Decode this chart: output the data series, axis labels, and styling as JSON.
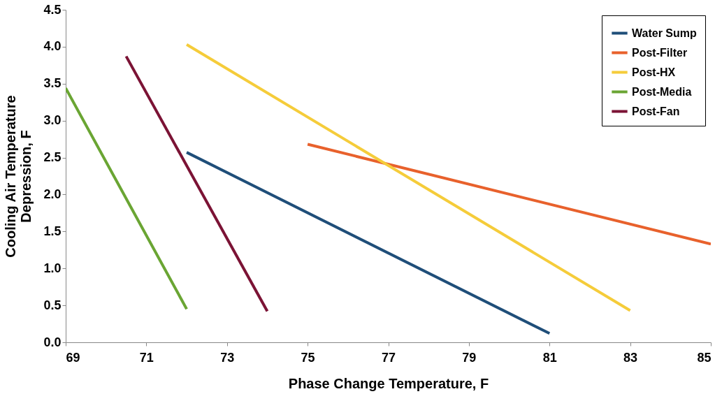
{
  "chart_data": {
    "type": "line",
    "xlabel": "Phase Change Temperature, F",
    "ylabel": "Cooling Air Temperature\nDepression, F",
    "xlim": [
      69,
      85
    ],
    "xticks": [
      69,
      71,
      73,
      75,
      77,
      79,
      81,
      83,
      85
    ],
    "ylim": [
      0,
      4.5
    ],
    "yticks": [
      {
        "value": 0,
        "label": "0.0"
      },
      {
        "value": 0.5,
        "label": "0.5"
      },
      {
        "value": 1,
        "label": "1.0"
      },
      {
        "value": 1.5,
        "label": "1.5"
      },
      {
        "value": 2,
        "label": "2.0"
      },
      {
        "value": 2.5,
        "label": "2.5"
      },
      {
        "value": 3,
        "label": "3.0"
      },
      {
        "value": 3.5,
        "label": "3.5"
      },
      {
        "value": 4,
        "label": "4.0"
      },
      {
        "value": 4.5,
        "label": "4.5"
      }
    ],
    "grid": false,
    "legend": "top right",
    "marker": "none",
    "line_style": "solid",
    "series": [
      {
        "name": "Water Sump",
        "color": "#1f4e79",
        "x": [
          72,
          81
        ],
        "values": [
          2.57,
          0.12
        ]
      },
      {
        "name": "Post-Filter",
        "color": "#e8612c",
        "x": [
          75,
          85
        ],
        "values": [
          2.68,
          1.33
        ]
      },
      {
        "name": "Post-HX",
        "color": "#f5cc3a",
        "x": [
          72,
          83
        ],
        "values": [
          4.03,
          0.43
        ]
      },
      {
        "name": "Post-Media",
        "color": "#6aa533",
        "x": [
          69,
          72
        ],
        "values": [
          3.44,
          0.45
        ]
      },
      {
        "name": "Post-Fan",
        "color": "#7b1335",
        "x": [
          70.5,
          74
        ],
        "values": [
          3.87,
          0.42
        ]
      }
    ]
  }
}
